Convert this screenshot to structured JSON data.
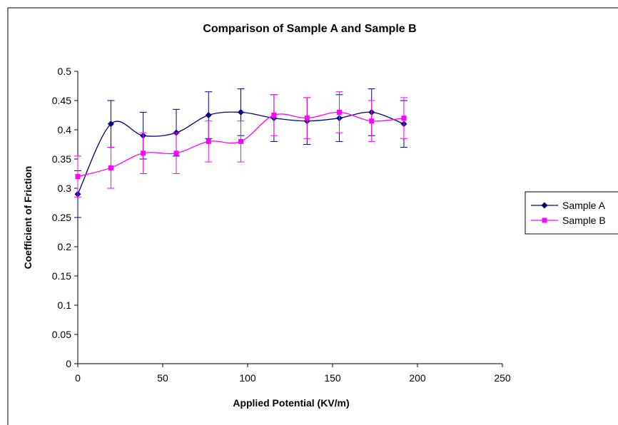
{
  "chart_data": {
    "type": "line",
    "title": "Comparison of Sample A and Sample B",
    "xlabel": "Applied Potential (KV/m)",
    "ylabel": "Coefficient of Friction",
    "xlim": [
      0,
      250
    ],
    "ylim": [
      0,
      0.5
    ],
    "x_ticks": [
      "0",
      "50",
      "100",
      "150",
      "200",
      "250"
    ],
    "y_ticks": [
      "0",
      "0.05",
      "0.1",
      "0.15",
      "0.2",
      "0.25",
      "0.3",
      "0.35",
      "0.4",
      "0.45",
      "0.5"
    ],
    "smoothed": true,
    "error_bars": true,
    "grid": false,
    "legend_position": "right",
    "series": [
      {
        "name": "Sample A",
        "color": "#000080",
        "marker": "diamond",
        "points": [
          {
            "x": 0,
            "y": 0.29,
            "err": 0.04
          },
          {
            "x": 19.5,
            "y": 0.41,
            "err": 0.04
          },
          {
            "x": 38.5,
            "y": 0.39,
            "err": 0.04
          },
          {
            "x": 58,
            "y": 0.395,
            "err": 0.04
          },
          {
            "x": 77,
            "y": 0.425,
            "err": 0.04
          },
          {
            "x": 96,
            "y": 0.43,
            "err": 0.04
          },
          {
            "x": 115.5,
            "y": 0.42,
            "err": 0.04
          },
          {
            "x": 135,
            "y": 0.415,
            "err": 0.04
          },
          {
            "x": 154,
            "y": 0.42,
            "err": 0.04
          },
          {
            "x": 173,
            "y": 0.43,
            "err": 0.04
          },
          {
            "x": 192,
            "y": 0.41,
            "err": 0.04
          }
        ]
      },
      {
        "name": "Sample B",
        "color": "#FF00FF",
        "marker": "square",
        "points": [
          {
            "x": 0,
            "y": 0.32,
            "err": 0.035
          },
          {
            "x": 19.5,
            "y": 0.335,
            "err": 0.035
          },
          {
            "x": 38.5,
            "y": 0.36,
            "err": 0.035
          },
          {
            "x": 58,
            "y": 0.36,
            "err": 0.035
          },
          {
            "x": 77,
            "y": 0.38,
            "err": 0.035
          },
          {
            "x": 96,
            "y": 0.38,
            "err": 0.035
          },
          {
            "x": 115.5,
            "y": 0.425,
            "err": 0.035
          },
          {
            "x": 135,
            "y": 0.42,
            "err": 0.035
          },
          {
            "x": 154,
            "y": 0.43,
            "err": 0.035
          },
          {
            "x": 173,
            "y": 0.415,
            "err": 0.035
          },
          {
            "x": 192,
            "y": 0.42,
            "err": 0.035
          }
        ]
      }
    ]
  }
}
